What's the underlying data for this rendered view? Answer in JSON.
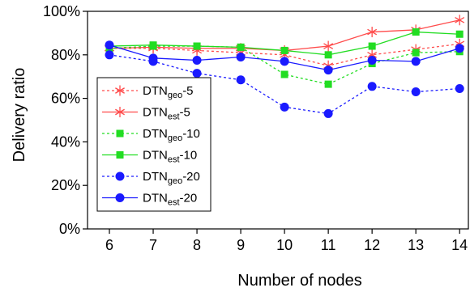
{
  "chart_data": {
    "type": "line",
    "xlabel": "Number of nodes",
    "ylabel": "Delivery ratio",
    "x": [
      6,
      7,
      8,
      9,
      10,
      11,
      12,
      13,
      14
    ],
    "x_ticks": [
      "6",
      "7",
      "8",
      "9",
      "10",
      "11",
      "12",
      "13",
      "14"
    ],
    "xlim": [
      5.5,
      14.2
    ],
    "ylim": [
      0,
      100
    ],
    "y_ticks": [
      "0%",
      "20%",
      "40%",
      "60%",
      "80%",
      "100%"
    ],
    "y_tick_values": [
      0,
      20,
      40,
      60,
      80,
      100
    ],
    "grid": false,
    "legend_position": "bottom-left",
    "series": [
      {
        "name_base": "DTN",
        "name_sub": "geo",
        "name_suffix": "-5",
        "color": "#ff4a4a",
        "dash": true,
        "marker": "asterisk",
        "values": [
          83,
          83,
          82,
          81,
          80,
          75,
          80,
          82.5,
          85
        ]
      },
      {
        "name_base": "DTN",
        "name_sub": "est",
        "name_suffix": "-5",
        "color": "#ff4a4a",
        "dash": false,
        "marker": "asterisk",
        "values": [
          83,
          83.5,
          83,
          83,
          82,
          84,
          90.5,
          91.5,
          96
        ]
      },
      {
        "name_base": "DTN",
        "name_sub": "geo",
        "name_suffix": "-10",
        "color": "#22dd22",
        "dash": true,
        "marker": "square",
        "values": [
          83,
          84,
          84,
          83.5,
          71,
          66.5,
          76,
          81,
          81.5
        ]
      },
      {
        "name_base": "DTN",
        "name_sub": "est",
        "name_suffix": "-10",
        "color": "#22dd22",
        "dash": false,
        "marker": "square",
        "values": [
          84,
          84.5,
          84,
          83.5,
          82,
          80,
          84,
          90.5,
          89.5
        ]
      },
      {
        "name_base": "DTN",
        "name_sub": "geo",
        "name_suffix": "-20",
        "color": "#1a1aff",
        "dash": true,
        "marker": "circle",
        "values": [
          80,
          77,
          71.5,
          68.5,
          56,
          53,
          65.5,
          63,
          64.5
        ]
      },
      {
        "name_base": "DTN",
        "name_sub": "est",
        "name_suffix": "-20",
        "color": "#1a1aff",
        "dash": false,
        "marker": "circle",
        "values": [
          84.5,
          78.5,
          77.5,
          79,
          77,
          73,
          77.5,
          77,
          83
        ]
      }
    ]
  }
}
